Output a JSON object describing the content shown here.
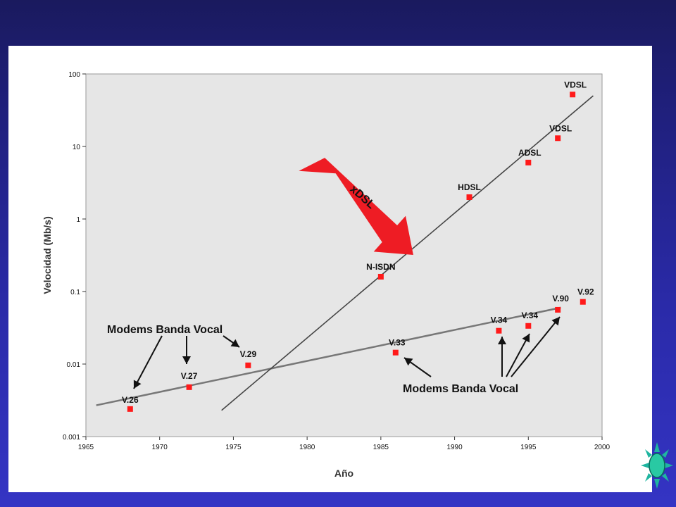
{
  "chart_data": {
    "type": "scatter",
    "title": "",
    "xlabel": "Año",
    "ylabel": "Velocidad (Mb/s)",
    "xlim": [
      1965,
      2000
    ],
    "ylim": [
      0.001,
      100
    ],
    "yscale": "log",
    "grid": false,
    "x_ticks": [
      "1965",
      "1970",
      "1975",
      "1980",
      "1985",
      "1990",
      "1995",
      "2000"
    ],
    "y_ticks": [
      "0.001",
      "0.01",
      "0.1",
      "1",
      "10",
      "100"
    ],
    "points": [
      {
        "label": "V.26",
        "x": 1968,
        "y": 0.0024
      },
      {
        "label": "V.27",
        "x": 1972,
        "y": 0.0048
      },
      {
        "label": "V.29",
        "x": 1976,
        "y": 0.0096
      },
      {
        "label": "V.33",
        "x": 1986,
        "y": 0.0144
      },
      {
        "label": "V.34",
        "x": 1993,
        "y": 0.0288
      },
      {
        "label": "V.34",
        "x": 1995,
        "y": 0.0336
      },
      {
        "label": "V.90",
        "x": 1997,
        "y": 0.056
      },
      {
        "label": "V.92",
        "x": 1998.7,
        "y": 0.072
      },
      {
        "label": "N-ISDN",
        "x": 1985,
        "y": 0.16
      },
      {
        "label": "HDSL",
        "x": 1991,
        "y": 2.0
      },
      {
        "label": "ADSL",
        "x": 1995,
        "y": 6.0
      },
      {
        "label": "VDSL",
        "x": 1997,
        "y": 13.0
      },
      {
        "label": "VDSL",
        "x": 1998,
        "y": 52.0
      }
    ],
    "trend_lines": [
      {
        "from": [
          1965.7,
          0.0027
        ],
        "to": [
          1997.2,
          0.06
        ]
      },
      {
        "from": [
          1974.2,
          0.0023
        ],
        "to": [
          1999.4,
          50
        ]
      }
    ],
    "annotations": {
      "xdsl_label": "xDSL",
      "modems_upper": "Modems Banda Vocal",
      "modems_lower": "Modems Banda Vocal"
    },
    "colors": {
      "point": "#ff1a1a",
      "plot_bg": "#e6e6e6",
      "arrow": "#ee1c24",
      "background": "#2a2aa8"
    }
  }
}
